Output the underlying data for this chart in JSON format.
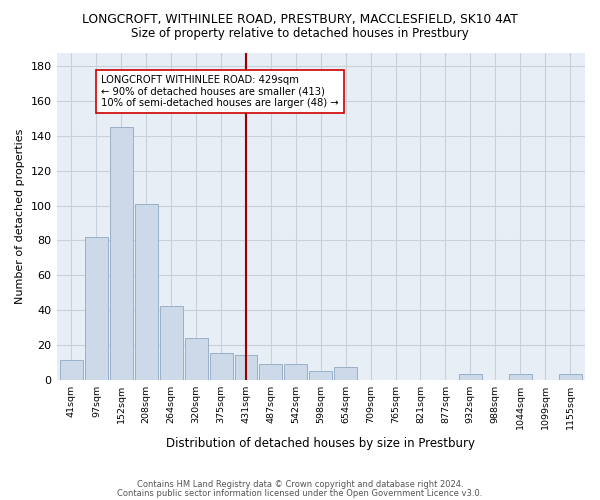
{
  "title": "LONGCROFT, WITHINLEE ROAD, PRESTBURY, MACCLESFIELD, SK10 4AT",
  "subtitle": "Size of property relative to detached houses in Prestbury",
  "xlabel": "Distribution of detached houses by size in Prestbury",
  "ylabel": "Number of detached properties",
  "bar_color": "#ccd9e8",
  "bar_edge_color": "#9ab0c8",
  "bins": [
    "41sqm",
    "97sqm",
    "152sqm",
    "208sqm",
    "264sqm",
    "320sqm",
    "375sqm",
    "431sqm",
    "487sqm",
    "542sqm",
    "598sqm",
    "654sqm",
    "709sqm",
    "765sqm",
    "821sqm",
    "877sqm",
    "932sqm",
    "988sqm",
    "1044sqm",
    "1099sqm",
    "1155sqm"
  ],
  "values": [
    11,
    82,
    145,
    101,
    42,
    24,
    15,
    14,
    9,
    9,
    5,
    7,
    0,
    0,
    0,
    0,
    3,
    0,
    3,
    0,
    3
  ],
  "vline_x_idx": 7,
  "vline_color": "#990000",
  "annotation_text": "LONGCROFT WITHINLEE ROAD: 429sqm\n← 90% of detached houses are smaller (413)\n10% of semi-detached houses are larger (48) →",
  "ylim": [
    0,
    188
  ],
  "yticks": [
    0,
    20,
    40,
    60,
    80,
    100,
    120,
    140,
    160,
    180
  ],
  "footer_line1": "Contains HM Land Registry data © Crown copyright and database right 2024.",
  "footer_line2": "Contains public sector information licensed under the Open Government Licence v3.0.",
  "bg_color": "#ffffff",
  "plot_bg_color": "#e8eef5",
  "grid_color": "#c8d0da"
}
